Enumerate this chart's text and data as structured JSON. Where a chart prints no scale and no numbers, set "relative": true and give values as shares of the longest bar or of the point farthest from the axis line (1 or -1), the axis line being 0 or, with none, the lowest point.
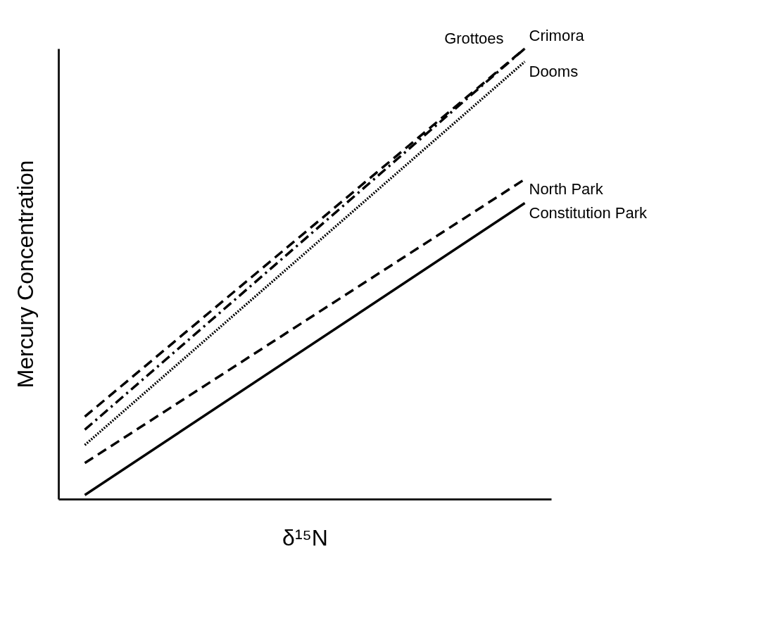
{
  "chart_data": {
    "type": "line",
    "relative": true,
    "xlabel": "δ¹⁵N",
    "ylabel": "Mercury Concentration",
    "categories": [
      null,
      null
    ],
    "tick_labels": false,
    "series": [
      {
        "name": "Crimora",
        "color": "#000000",
        "line_style": "dashdot",
        "values": [
          0.154,
          1.0
        ]
      },
      {
        "name": "Grottoes",
        "color": "#000000",
        "line_style": "dashed",
        "values": [
          0.183,
          1.0
        ]
      },
      {
        "name": "Dooms",
        "color": "#000000",
        "line_style": "dotted",
        "values": [
          0.12,
          0.971
        ]
      },
      {
        "name": "North Park",
        "color": "#000000",
        "line_style": "dashed",
        "values": [
          0.08,
          0.71
        ]
      },
      {
        "name": "Constitution Park",
        "color": "#000000",
        "line_style": "solid",
        "values": [
          0.009,
          0.657
        ]
      }
    ]
  }
}
